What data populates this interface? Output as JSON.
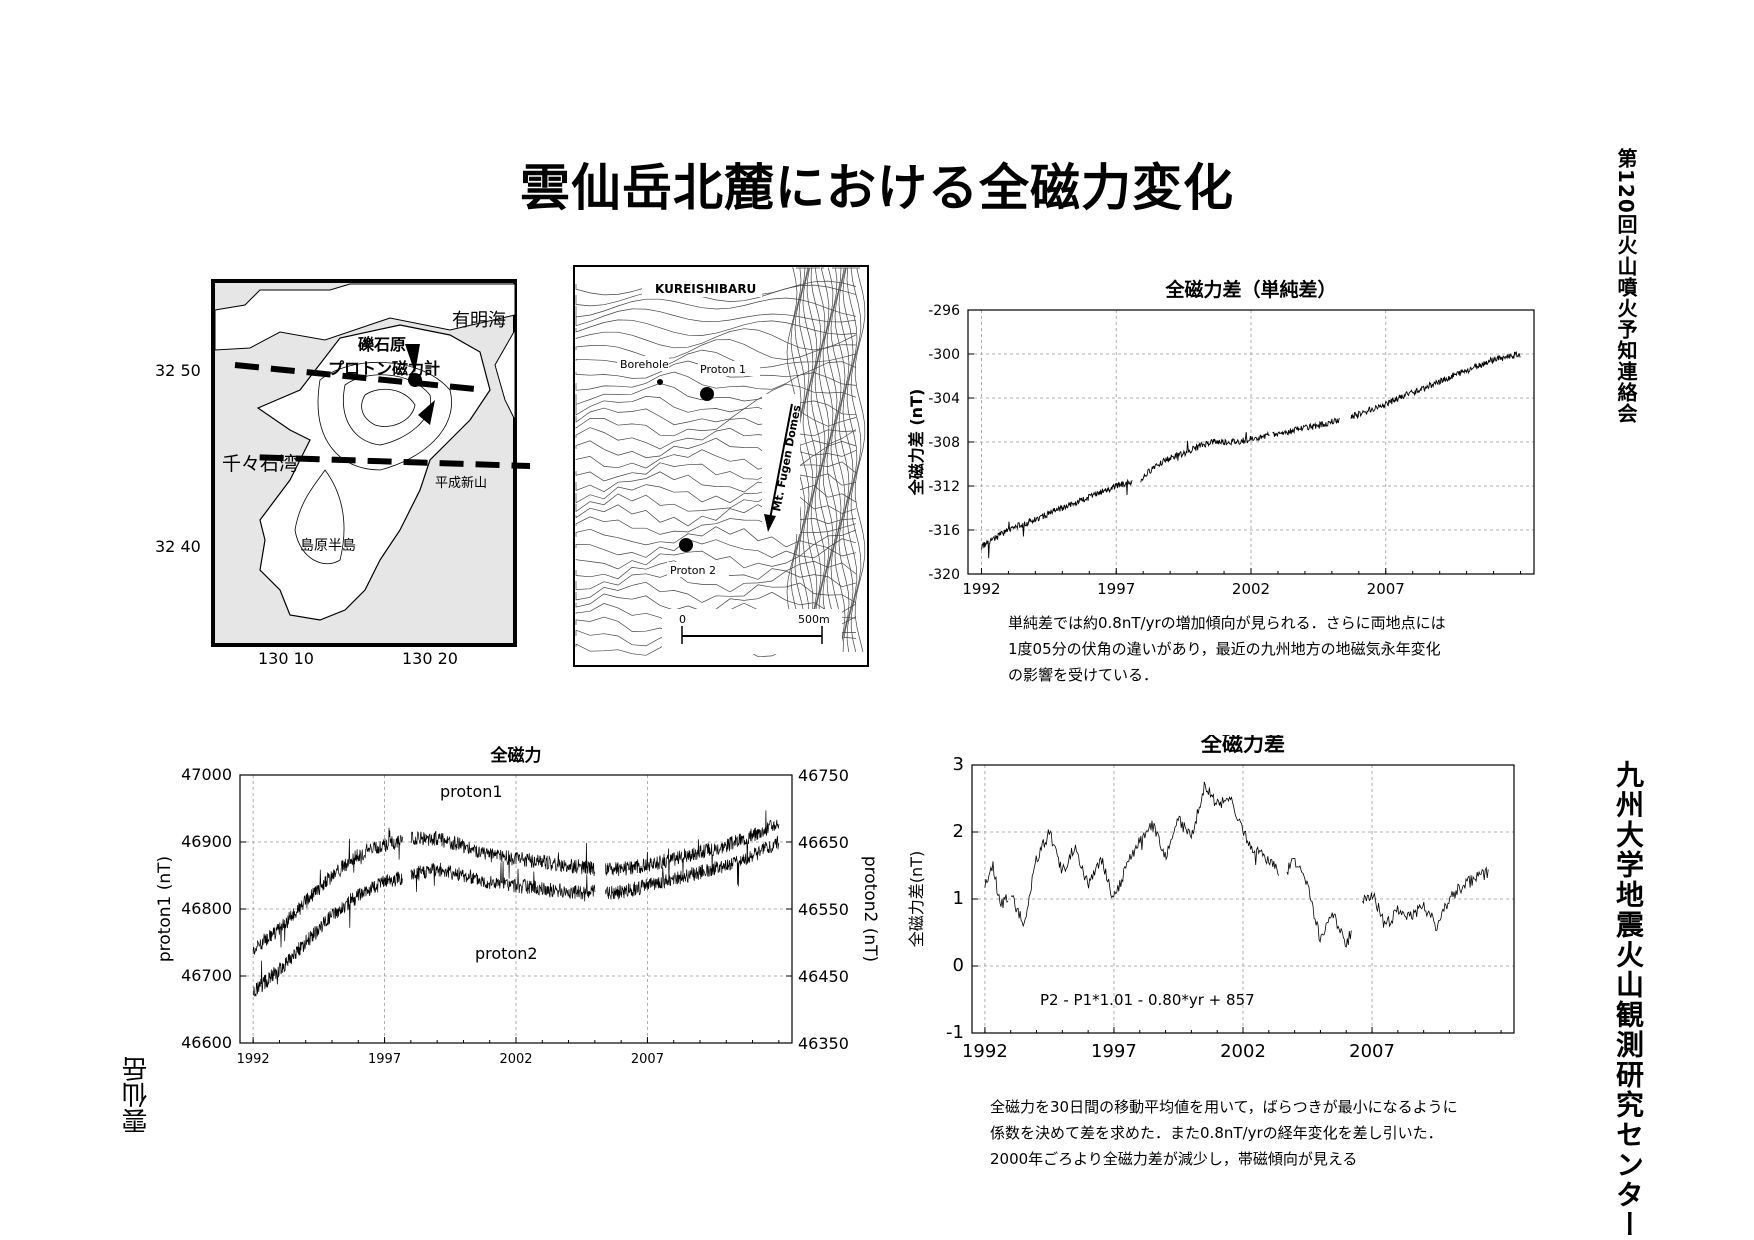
{
  "page": {
    "title": "雲仙岳北麓における全磁力変化",
    "vertical_meeting": "第120回火山噴火予知連絡会",
    "vertical_institution": "九州大学地震火山観測研究センター",
    "vertical_place": "雲仙岳"
  },
  "map_left": {
    "labels": {
      "sea_east": "有明海",
      "sea_west": "千々石湾",
      "site": "礫石原",
      "magnetometer": "プロトン磁力計",
      "volcano": "平成新山",
      "peninsula": "島原半島"
    },
    "lat_ticks": [
      "32  50",
      "32  40"
    ],
    "lon_ticks": [
      "130  10",
      "130  20"
    ]
  },
  "map_right": {
    "labels": {
      "area": "KUREISHIBARU",
      "borehole": "Borehole",
      "proton1": "Proton 1",
      "proton2": "Proton 2",
      "domes": "Mt. Fugen Domes",
      "scale_start": "0",
      "scale_end": "500m"
    }
  },
  "descriptions": {
    "simple_diff": [
      "単純差では約0.8nT/yrの増加傾向が見られる．さらに両地点には",
      "1度05分の伏角の違いがあり，最近の九州地方の地磁気永年変化",
      "の影響を受けている．"
    ],
    "diff": [
      "全磁力を30日間の移動平均値を用いて，ばらつきが最小になるように",
      "係数を決めて差を求めた．また0.8nT/yrの経年変化を差し引いた．",
      "2000年ごろより全磁力差が減少し，帯磁傾向が見える"
    ]
  },
  "chart_data": [
    {
      "id": "simple-difference",
      "type": "line",
      "title": "全磁力差（単純差）",
      "ylabel": "全磁力差 (nT)",
      "xlabel": "",
      "xlim": [
        1991.5,
        2012.5
      ],
      "ylim": [
        -320,
        -296
      ],
      "xticks": [
        1992,
        1997,
        2002,
        2007
      ],
      "yticks": [
        -320,
        -316,
        -312,
        -308,
        -304,
        -300,
        -296
      ],
      "grid": true,
      "series": [
        {
          "x": [
            1992.0,
            1993.0,
            1994.0,
            1995.0,
            1996.0,
            1997.0,
            1997.9,
            1998.5,
            1999.5,
            2000.5,
            2001.5,
            2002.5,
            2003.5,
            2004.5,
            2005.2,
            2006.0,
            2007.0,
            2008.0,
            2009.0,
            2010.0,
            2011.0,
            2012.0
          ],
          "y": [
            -317.5,
            -316.0,
            -315.0,
            -314.0,
            -313.0,
            -312.0,
            -311.5,
            -310.0,
            -309.0,
            -308.0,
            -308.0,
            -307.5,
            -307.0,
            -306.5,
            -306.0,
            -305.5,
            -304.5,
            -303.5,
            -302.5,
            -301.5,
            -300.5,
            -300.0
          ]
        }
      ]
    },
    {
      "id": "total-field",
      "type": "line",
      "title": "全磁力",
      "ylabel": "proton1 (nT)",
      "y2label": "proton2 (nT)",
      "xlim": [
        1991.5,
        2012.5
      ],
      "ylim": [
        46600,
        47000
      ],
      "y2lim": [
        46350,
        46750
      ],
      "xticks": [
        1992,
        1997,
        2002,
        2007
      ],
      "yticks": [
        46600,
        46700,
        46800,
        46900,
        47000
      ],
      "y2ticks": [
        46350,
        46450,
        46550,
        46650,
        46750
      ],
      "grid": true,
      "annotations": [
        "proton1",
        "proton2"
      ],
      "series": [
        {
          "name": "proton1",
          "x": [
            1992.0,
            1993.0,
            1994.0,
            1995.0,
            1996.0,
            1997.0,
            1997.9,
            1998.5,
            1999.0,
            2000.0,
            2001.0,
            2002.0,
            2003.0,
            2004.0,
            2005.0,
            2006.0,
            2007.0,
            2008.0,
            2009.0,
            2010.0,
            2011.0,
            2012.0
          ],
          "y": [
            46740,
            46770,
            46810,
            46850,
            46880,
            46895,
            46905,
            46905,
            46905,
            46895,
            46880,
            46875,
            46870,
            46865,
            46860,
            46860,
            46865,
            46875,
            46885,
            46895,
            46910,
            46930
          ]
        },
        {
          "name": "proton2",
          "x": [
            1992.0,
            1993.0,
            1994.0,
            1995.0,
            1996.0,
            1997.0,
            1997.9,
            1998.5,
            1999.0,
            2000.0,
            2001.0,
            2002.0,
            2003.0,
            2004.0,
            2005.0,
            2006.0,
            2007.0,
            2008.0,
            2009.0,
            2010.0,
            2011.0,
            2012.0
          ],
          "y": [
            46425,
            46460,
            46500,
            46540,
            46570,
            46590,
            46600,
            46605,
            46610,
            46600,
            46590,
            46585,
            46580,
            46575,
            46575,
            46575,
            46585,
            46595,
            46605,
            46615,
            46630,
            46650
          ]
        }
      ]
    },
    {
      "id": "difference",
      "type": "line",
      "title": "全磁力差",
      "ylabel": "全磁力差(nT)",
      "xlim": [
        1991.5,
        2012.5
      ],
      "ylim": [
        -1,
        3
      ],
      "xticks": [
        1992,
        1997,
        2002,
        2007
      ],
      "yticks": [
        -1,
        0,
        1,
        2,
        3
      ],
      "grid": true,
      "annotations": [
        "P2 - P1*1.01 - 0.80*yr + 857"
      ],
      "series": [
        {
          "x": [
            1992.0,
            1992.3,
            1992.6,
            1993.0,
            1993.5,
            1994.0,
            1994.5,
            1995.0,
            1995.5,
            1996.0,
            1996.5,
            1997.0,
            1997.5,
            1998.0,
            1998.5,
            1999.0,
            1999.5,
            2000.0,
            2000.5,
            2001.0,
            2001.5,
            2002.0,
            2002.5,
            2003.0,
            2003.5,
            2004.0,
            2004.5,
            2005.0,
            2005.5,
            2006.0,
            2006.5,
            2007.0,
            2007.5,
            2008.0,
            2008.5,
            2009.0,
            2009.5,
            2010.0,
            2010.5,
            2011.0,
            2011.5
          ],
          "y": [
            1.2,
            1.5,
            0.9,
            1.1,
            0.6,
            1.6,
            2.0,
            1.4,
            1.8,
            1.2,
            1.6,
            1.0,
            1.5,
            1.9,
            2.1,
            1.6,
            2.2,
            1.9,
            2.7,
            2.4,
            2.5,
            2.0,
            1.7,
            1.6,
            1.3,
            1.6,
            1.2,
            0.4,
            0.8,
            0.3,
            0.9,
            1.1,
            0.6,
            0.8,
            0.7,
            0.9,
            0.6,
            1.0,
            1.2,
            1.3,
            1.4
          ]
        }
      ]
    }
  ]
}
